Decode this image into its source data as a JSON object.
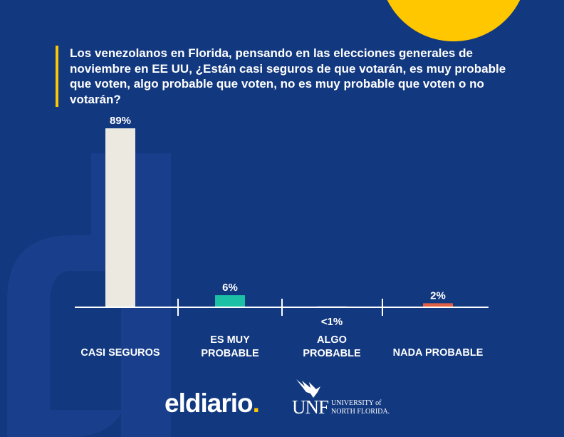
{
  "title": "Los venezolanos en Florida, pensando en las elecciones generales de noviembre en EE UU, ¿Están casi seguros de que votarán, es muy probable que voten, algo probable que voten, no es muy probable que voten o no votarán?",
  "colors": {
    "background": "#12387f",
    "accent": "#ffc700",
    "bar_casi_seguros": "#ece9e1",
    "bar_es_muy_probable": "#1bc0a5",
    "bar_algo_probable": "#6b7fa3",
    "bar_nada_probable": "#e05f44"
  },
  "chart_data": {
    "type": "bar",
    "categories": [
      "CASI SEGUROS",
      "ES MUY PROBABLE",
      "ALGO PROBABLE",
      "NADA PROBABLE"
    ],
    "values": [
      89,
      6,
      0.3,
      2
    ],
    "data_labels": [
      "89%",
      "6%",
      "<1%",
      "2%"
    ],
    "ylim": [
      0,
      100
    ],
    "grid": false
  },
  "branding": {
    "logo_main": "eldiario",
    "logo_dot": ".",
    "partner_letters": "UNF",
    "partner_line1": "UNIVERSITY of",
    "partner_line2": "NORTH FLORIDA.",
    "partner_icon": "osprey-icon"
  }
}
